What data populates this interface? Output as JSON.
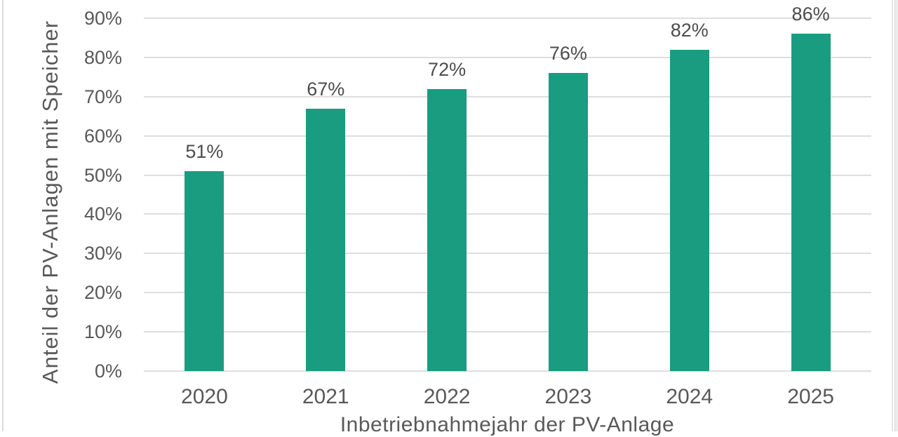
{
  "frame": {
    "background": "#ffffff",
    "left_border_color": "#dcdcdc",
    "right_border_color": "#e3e3e3",
    "right_strip_color": "#ececec",
    "right_strip_edge_color": "#d9d9d9"
  },
  "chart_data": {
    "type": "bar",
    "title": "",
    "categories": [
      "2020",
      "2021",
      "2022",
      "2023",
      "2024",
      "2025"
    ],
    "values": [
      51,
      67,
      72,
      76,
      82,
      86
    ],
    "data_labels": [
      "51%",
      "67%",
      "72%",
      "76%",
      "82%",
      "86%"
    ],
    "xlabel": "Inbetriebnahmejahr der PV-Anlage",
    "ylabel": "Anteil der PV-Anlagen mit Speicher",
    "y_ticks": [
      "0%",
      "10%",
      "20%",
      "30%",
      "40%",
      "50%",
      "60%",
      "70%",
      "80%",
      "90%"
    ],
    "y_tick_values": [
      0,
      10,
      20,
      30,
      40,
      50,
      60,
      70,
      80,
      90
    ],
    "ylim": [
      0,
      90
    ],
    "grid": "horizontal-only",
    "legend": "none",
    "bar_color": "#1A9C80",
    "gridline_color": "#dedede",
    "axis_text_color": "#595959",
    "data_label_color": "#4d4d4d",
    "notes": "top of y-axis title and bottom x-axis title are cropped by the viewport"
  }
}
